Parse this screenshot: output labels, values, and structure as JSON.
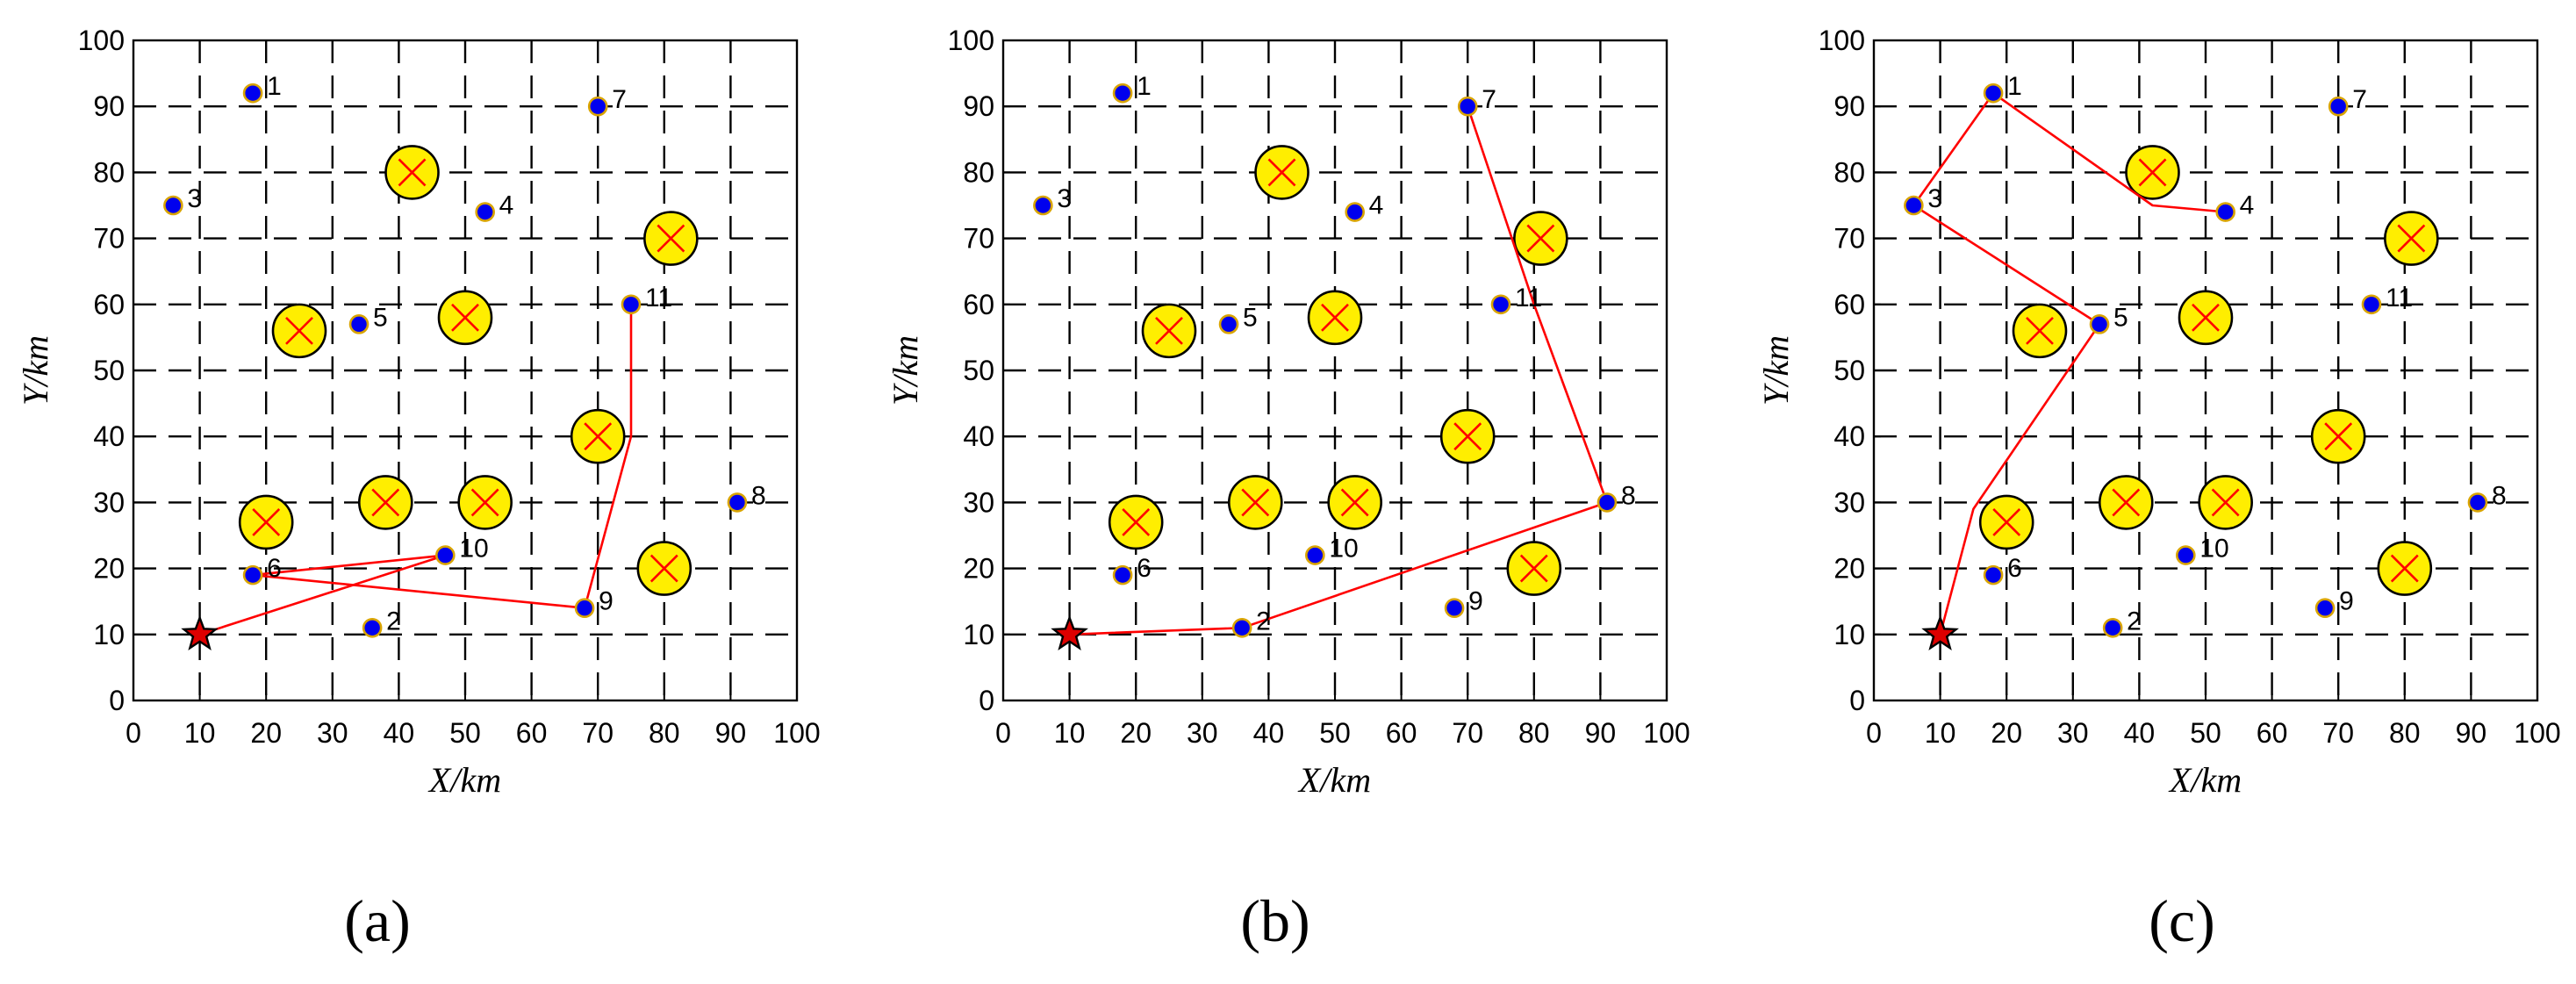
{
  "chart_data": [
    {
      "type": "scatter",
      "caption": "(a)",
      "xlabel": "X/km",
      "ylabel": "Y/km",
      "xlim": [
        0,
        100
      ],
      "ylim": [
        0,
        100
      ],
      "xticks": [
        "0",
        "10",
        "20",
        "30",
        "40",
        "50",
        "60",
        "70",
        "80",
        "90",
        "100"
      ],
      "yticks": [
        "0",
        "10",
        "20",
        "30",
        "40",
        "50",
        "60",
        "70",
        "80",
        "90",
        "100"
      ],
      "grid": true,
      "depot": {
        "x": 10,
        "y": 10
      },
      "targets": [
        {
          "label": "1",
          "x": 18,
          "y": 92
        },
        {
          "label": "2",
          "x": 36,
          "y": 11
        },
        {
          "label": "3",
          "x": 6,
          "y": 75
        },
        {
          "label": "4",
          "x": 53,
          "y": 74
        },
        {
          "label": "5",
          "x": 34,
          "y": 57
        },
        {
          "label": "6",
          "x": 18,
          "y": 19
        },
        {
          "label": "7",
          "x": 70,
          "y": 90
        },
        {
          "label": "8",
          "x": 91,
          "y": 30
        },
        {
          "label": "9",
          "x": 68,
          "y": 14
        },
        {
          "label": "10",
          "x": 47,
          "y": 22
        },
        {
          "label": "11",
          "x": 75,
          "y": 60
        }
      ],
      "threats": [
        {
          "x": 42,
          "y": 80
        },
        {
          "x": 81,
          "y": 70
        },
        {
          "x": 25,
          "y": 56
        },
        {
          "x": 50,
          "y": 58
        },
        {
          "x": 70,
          "y": 40
        },
        {
          "x": 20,
          "y": 27
        },
        {
          "x": 38,
          "y": 30
        },
        {
          "x": 53,
          "y": 30
        },
        {
          "x": 80,
          "y": 20
        }
      ],
      "route": [
        [
          10,
          10
        ],
        [
          47,
          22
        ],
        [
          18,
          19
        ],
        [
          68,
          14
        ],
        [
          75,
          40
        ],
        [
          75,
          60
        ]
      ]
    },
    {
      "type": "scatter",
      "caption": "(b)",
      "xlabel": "X/km",
      "ylabel": "Y/km",
      "xlim": [
        0,
        100
      ],
      "ylim": [
        0,
        100
      ],
      "xticks": [
        "0",
        "10",
        "20",
        "30",
        "40",
        "50",
        "60",
        "70",
        "80",
        "90",
        "100"
      ],
      "yticks": [
        "0",
        "10",
        "20",
        "30",
        "40",
        "50",
        "60",
        "70",
        "80",
        "90",
        "100"
      ],
      "grid": true,
      "depot": {
        "x": 10,
        "y": 10
      },
      "targets": [
        {
          "label": "1",
          "x": 18,
          "y": 92
        },
        {
          "label": "2",
          "x": 36,
          "y": 11
        },
        {
          "label": "3",
          "x": 6,
          "y": 75
        },
        {
          "label": "4",
          "x": 53,
          "y": 74
        },
        {
          "label": "5",
          "x": 34,
          "y": 57
        },
        {
          "label": "6",
          "x": 18,
          "y": 19
        },
        {
          "label": "7",
          "x": 70,
          "y": 90
        },
        {
          "label": "8",
          "x": 91,
          "y": 30
        },
        {
          "label": "9",
          "x": 68,
          "y": 14
        },
        {
          "label": "10",
          "x": 47,
          "y": 22
        },
        {
          "label": "11",
          "x": 75,
          "y": 60
        }
      ],
      "threats": [
        {
          "x": 42,
          "y": 80
        },
        {
          "x": 81,
          "y": 70
        },
        {
          "x": 25,
          "y": 56
        },
        {
          "x": 50,
          "y": 58
        },
        {
          "x": 70,
          "y": 40
        },
        {
          "x": 20,
          "y": 27
        },
        {
          "x": 38,
          "y": 30
        },
        {
          "x": 53,
          "y": 30
        },
        {
          "x": 80,
          "y": 20
        }
      ],
      "route": [
        [
          10,
          10
        ],
        [
          36,
          11
        ],
        [
          91,
          30
        ],
        [
          80,
          60
        ],
        [
          70,
          90
        ]
      ]
    },
    {
      "type": "scatter",
      "caption": "(c)",
      "xlabel": "X/km",
      "ylabel": "Y/km",
      "xlim": [
        0,
        100
      ],
      "ylim": [
        0,
        100
      ],
      "xticks": [
        "0",
        "10",
        "20",
        "30",
        "40",
        "50",
        "60",
        "70",
        "80",
        "90",
        "100"
      ],
      "yticks": [
        "0",
        "10",
        "20",
        "30",
        "40",
        "50",
        "60",
        "70",
        "80",
        "90",
        "100"
      ],
      "grid": true,
      "depot": {
        "x": 10,
        "y": 10
      },
      "targets": [
        {
          "label": "1",
          "x": 18,
          "y": 92
        },
        {
          "label": "2",
          "x": 36,
          "y": 11
        },
        {
          "label": "3",
          "x": 6,
          "y": 75
        },
        {
          "label": "4",
          "x": 53,
          "y": 74
        },
        {
          "label": "5",
          "x": 34,
          "y": 57
        },
        {
          "label": "6",
          "x": 18,
          "y": 19
        },
        {
          "label": "7",
          "x": 70,
          "y": 90
        },
        {
          "label": "8",
          "x": 91,
          "y": 30
        },
        {
          "label": "9",
          "x": 68,
          "y": 14
        },
        {
          "label": "10",
          "x": 47,
          "y": 22
        },
        {
          "label": "11",
          "x": 75,
          "y": 60
        }
      ],
      "threats": [
        {
          "x": 42,
          "y": 80
        },
        {
          "x": 81,
          "y": 70
        },
        {
          "x": 25,
          "y": 56
        },
        {
          "x": 50,
          "y": 58
        },
        {
          "x": 70,
          "y": 40
        },
        {
          "x": 20,
          "y": 27
        },
        {
          "x": 38,
          "y": 30
        },
        {
          "x": 53,
          "y": 30
        },
        {
          "x": 80,
          "y": 20
        }
      ],
      "route": [
        [
          10,
          10
        ],
        [
          15,
          29
        ],
        [
          34,
          57
        ],
        [
          6,
          75
        ],
        [
          18,
          92
        ],
        [
          42,
          75
        ],
        [
          53,
          74
        ]
      ]
    }
  ],
  "colors": {
    "target_fill": "#0000ee",
    "target_stroke": "#d9a400",
    "threat_fill": "#ffee00",
    "threat_cross": "#ff0000",
    "route": "#ff0000",
    "depot": "#dd0000",
    "grid": "#000000"
  }
}
